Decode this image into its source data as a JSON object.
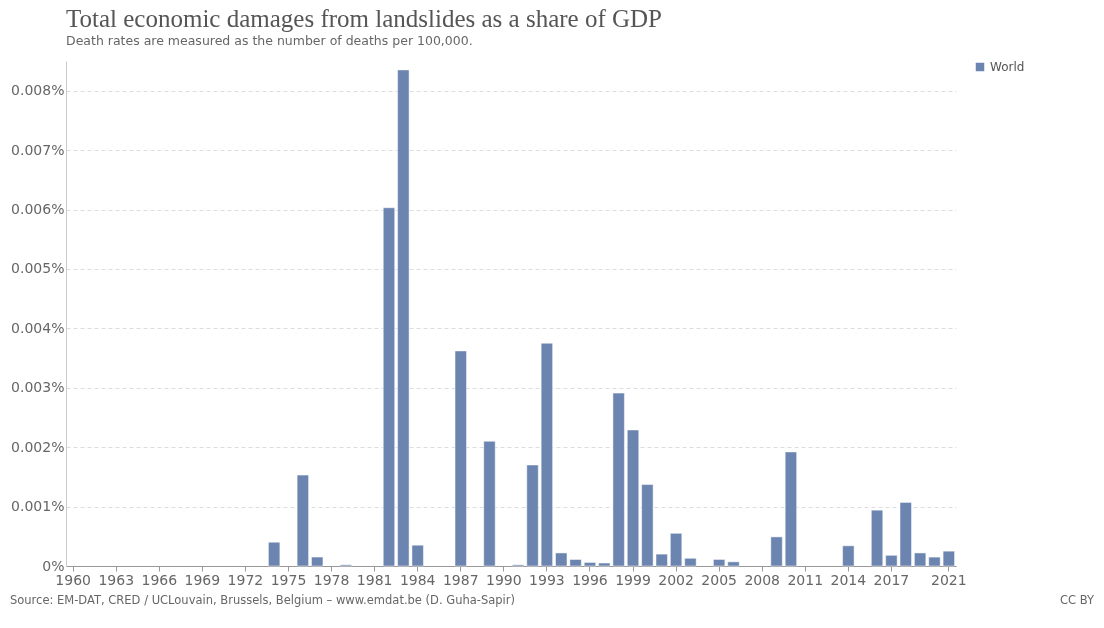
{
  "chart_data": {
    "type": "bar",
    "title": "Total economic damages from landslides as a share of GDP",
    "subtitle": "Death rates are measured as the number of deaths per 100,000.",
    "categories": [
      "1960",
      null,
      null,
      "1963",
      null,
      null,
      "1966",
      null,
      null,
      "1969",
      null,
      null,
      "1972",
      null,
      null,
      "1975",
      null,
      null,
      "1978",
      null,
      null,
      "1981",
      null,
      null,
      "1984",
      null,
      null,
      "1987",
      null,
      null,
      "1990",
      null,
      null,
      "1993",
      null,
      null,
      "1996",
      null,
      null,
      "1999",
      null,
      null,
      "2002",
      null,
      null,
      "2005",
      null,
      null,
      "2008",
      null,
      null,
      "2011",
      null,
      null,
      "2014",
      null,
      null,
      "2017",
      null,
      null,
      null,
      "2021"
    ],
    "series": [
      {
        "name": "World",
        "color": "#6b84b0",
        "values": [
          null,
          null,
          null,
          null,
          null,
          null,
          null,
          null,
          null,
          null,
          null,
          null,
          null,
          null,
          0.0004,
          null,
          0.00153,
          0.00015,
          null,
          2e-05,
          null,
          null,
          0.00603,
          0.00835,
          0.00035,
          null,
          null,
          0.00362,
          null,
          0.0021,
          null,
          2e-05,
          0.0017,
          0.00375,
          0.00022,
          0.00011,
          6e-05,
          5e-05,
          0.00291,
          0.00229,
          0.00137,
          0.0002,
          0.00055,
          0.00013,
          null,
          0.00011,
          7e-05,
          null,
          null,
          0.00049,
          0.00192,
          null,
          null,
          null,
          0.00034,
          null,
          0.00094,
          0.00018,
          0.00107,
          0.00022,
          0.00015,
          0.00025
        ]
      }
    ],
    "ylim": [
      0,
      0.0085
    ],
    "yticks": [
      {
        "value": 0,
        "label": "0%"
      },
      {
        "value": 0.001,
        "label": "0.001%"
      },
      {
        "value": 0.002,
        "label": "0.002%"
      },
      {
        "value": 0.003,
        "label": "0.003%"
      },
      {
        "value": 0.004,
        "label": "0.004%"
      },
      {
        "value": 0.005,
        "label": "0.005%"
      },
      {
        "value": 0.006,
        "label": "0.006%"
      },
      {
        "value": 0.007,
        "label": "0.007%"
      },
      {
        "value": 0.008,
        "label": "0.008%"
      }
    ],
    "grid": "y",
    "legend": "top right",
    "annotations": [
      "Source: EM-DAT, CRED / UCLouvain, Brussels, Belgium – www.emdat.be (D. Guha-Sapir)",
      "CC BY"
    ]
  }
}
